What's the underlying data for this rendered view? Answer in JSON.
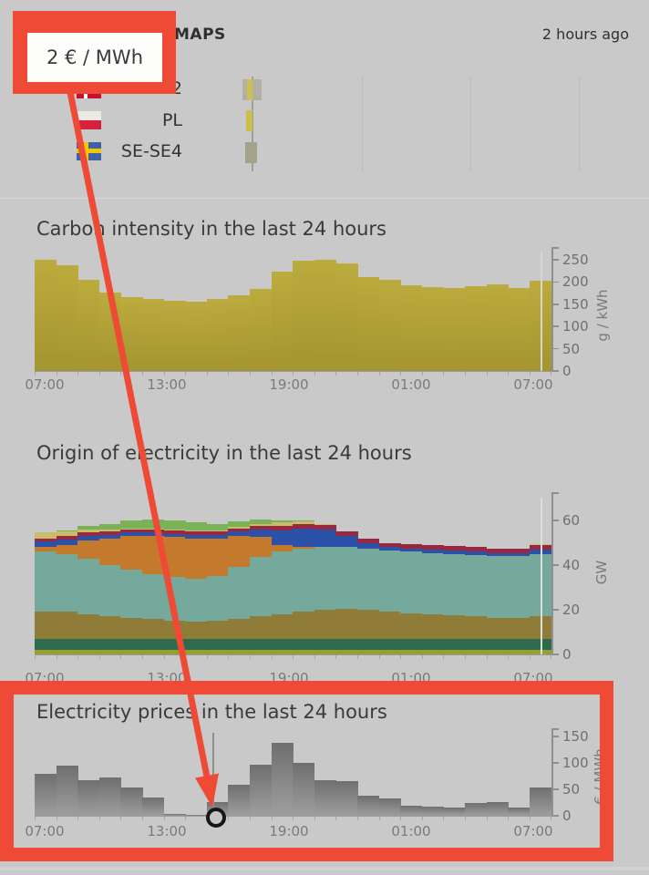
{
  "header": {
    "logo_text": "MAPS",
    "updated_label": "2 hours ago"
  },
  "annotation": {
    "tooltip_text": "2 € / MWh"
  },
  "zone_list": {
    "rows": [
      {
        "label": "2",
        "flag": "dk",
        "bar_segments": [
          {
            "offset": -11,
            "width": 21,
            "color": "#b2b0a4"
          },
          {
            "offset": -6,
            "width": 6,
            "color": "#cfc052"
          }
        ]
      },
      {
        "label": "PL",
        "flag": "pl",
        "bar_segments": [
          {
            "offset": -7,
            "width": 7,
            "color": "#cdbe4c"
          }
        ]
      },
      {
        "label": "SE-SE4",
        "flag": "se",
        "bar_segments": [
          {
            "offset": -8,
            "width": 13,
            "color": "#a5a28c"
          }
        ]
      }
    ]
  },
  "charts": {
    "carbon": {
      "title": "Carbon intensity in the last 24 hours",
      "chart_data": {
        "type": "bar",
        "y_unit": "g / kWh",
        "y_ticks": [
          0,
          50,
          100,
          150,
          200,
          250
        ],
        "x_ticks": [
          "07:00",
          "13:00",
          "19:00",
          "01:00",
          "07:00"
        ],
        "bar_color_top": "#bcab3e",
        "bar_color_bottom": "#a3952f",
        "values": [
          250,
          237,
          205,
          176,
          166,
          162,
          158,
          155,
          162,
          170,
          185,
          224,
          248,
          250,
          241,
          211,
          204,
          193,
          189,
          186,
          191,
          194,
          186,
          203
        ]
      }
    },
    "origin": {
      "title": "Origin of electricity in the last 24 hours",
      "chart_data": {
        "type": "area",
        "y_unit": "GW",
        "y_ticks": [
          0,
          20,
          40,
          60
        ],
        "x_ticks": [
          "07:00",
          "13:00",
          "19:00",
          "01:00",
          "07:00"
        ],
        "series": [
          {
            "name": "lime",
            "color": "#97a02f",
            "values": [
              2,
              2,
              2,
              2,
              2,
              2,
              2,
              2,
              2,
              2,
              2,
              2,
              2,
              2,
              2,
              2,
              2,
              2,
              2,
              2,
              2,
              2,
              2,
              2
            ]
          },
          {
            "name": "dark-green",
            "color": "#2c6b4c",
            "values": [
              5,
              5,
              5,
              5,
              5,
              5,
              5,
              5,
              5,
              5,
              5,
              5,
              5,
              5,
              5,
              5,
              5,
              5,
              5,
              5,
              5,
              5,
              5,
              5
            ]
          },
          {
            "name": "tan",
            "color": "#8e7c38",
            "values": [
              12,
              12,
              11,
              10,
              9.5,
              9,
              8,
              7.5,
              8,
              9,
              10,
              11,
              12,
              13,
              13.5,
              13,
              12,
              11.5,
              11,
              10.5,
              10,
              9.5,
              9.5,
              10
            ]
          },
          {
            "name": "teal",
            "color": "#74a99b",
            "values": [
              27,
              26,
              25,
              23,
              21.5,
              20,
              19.5,
              19.5,
              20,
              23,
              26.5,
              28,
              28.5,
              28,
              27.5,
              27.5,
              27.5,
              27.5,
              27.5,
              27.5,
              27.5,
              27.5,
              27.5,
              28
            ]
          },
          {
            "name": "orange",
            "color": "#c47a2d",
            "values": [
              2,
              4,
              8,
              12,
              15,
              17,
              18,
              18,
              17,
              14,
              9,
              3,
              0.5,
              0,
              0,
              0,
              0,
              0,
              0,
              0,
              0,
              0,
              0,
              0
            ]
          },
          {
            "name": "blue",
            "color": "#2b52a8",
            "values": [
              2.5,
              2.5,
              2,
              1.5,
              1.5,
              1.5,
              1.5,
              1.5,
              1.5,
              2,
              3.5,
              6.5,
              8.5,
              8,
              5,
              2.5,
              1.5,
              1.5,
              1.5,
              1.5,
              1.5,
              1.5,
              1.5,
              2
            ]
          },
          {
            "name": "maroon",
            "color": "#97283f",
            "values": [
              1.5,
              1.5,
              1.5,
              1.5,
              1.5,
              1.5,
              1.5,
              1.5,
              1.5,
              1.5,
              1.5,
              2,
              2,
              2,
              2,
              2,
              2,
              2,
              2,
              2,
              2,
              2,
              2,
              2
            ]
          },
          {
            "name": "khaki",
            "color": "#c9bc6b",
            "values": [
              2.5,
              2,
              1.5,
              1,
              0.5,
              0.5,
              0.5,
              0.5,
              0.5,
              0.5,
              1,
              1.5,
              1,
              0.5,
              0,
              0,
              0,
              0,
              0,
              0,
              0,
              0,
              0,
              0.5
            ]
          },
          {
            "name": "light-green",
            "color": "#79b257",
            "values": [
              0,
              0.5,
              1.5,
              2.5,
              3.5,
              4,
              4,
              3.5,
              3,
              2.5,
              2,
              1,
              0.5,
              0,
              0,
              0,
              0,
              0,
              0,
              0,
              0,
              0,
              0,
              0
            ]
          }
        ]
      }
    },
    "price": {
      "title": "Electricity prices in the last 24 hours",
      "chart_data": {
        "type": "bar",
        "y_unit": "€ / MWh",
        "y_ticks": [
          0,
          50,
          100,
          150
        ],
        "x_ticks": [
          "07:00",
          "13:00",
          "19:00",
          "01:00",
          "07:00"
        ],
        "bar_color_top": "#6f6f6f",
        "bar_color_bottom": "#9e9e9e",
        "values": [
          80,
          95,
          68,
          73,
          53,
          35,
          3,
          2,
          26,
          59,
          97,
          138,
          100,
          68,
          65,
          38,
          32,
          19,
          18,
          16,
          24,
          26,
          15,
          53
        ],
        "selected_index": 7,
        "selected_value_label": "2 € / MWh"
      }
    }
  }
}
